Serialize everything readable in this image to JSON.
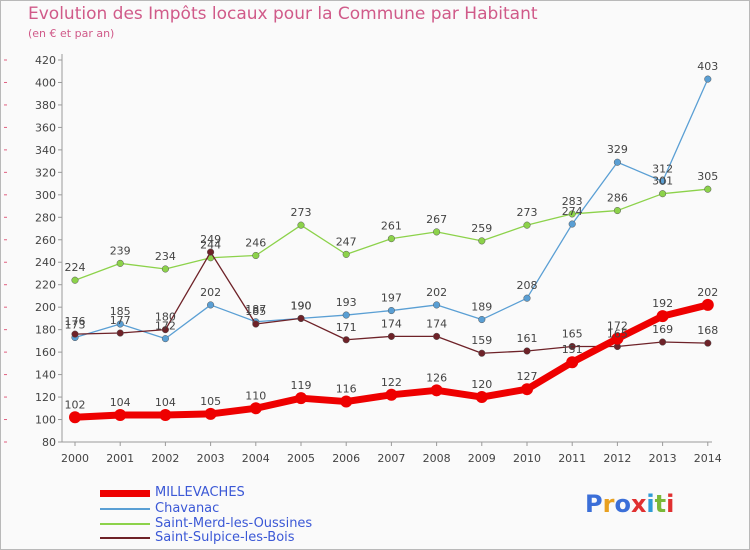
{
  "title": "Evolution des Impôts locaux pour la Commune par Habitant",
  "subtitle": "(en € et par an)",
  "logo": {
    "text": "Proxiti",
    "letter_colors": [
      "#3b6fd8",
      "#e8a020",
      "#3b6fd8",
      "#e03030",
      "#2f9bd6",
      "#7ab838",
      "#e03030"
    ]
  },
  "chart_data": {
    "type": "line",
    "title": "Evolution des Impôts locaux pour la Commune par Habitant",
    "subtitle": "(en € et par an)",
    "x": [
      2000,
      2001,
      2002,
      2003,
      2004,
      2005,
      2006,
      2007,
      2008,
      2009,
      2010,
      2011,
      2012,
      2013,
      2014
    ],
    "ylim": [
      80,
      420
    ],
    "yticks": [
      80,
      100,
      120,
      140,
      160,
      180,
      200,
      220,
      240,
      260,
      280,
      300,
      320,
      340,
      360,
      380,
      400,
      420
    ],
    "grid": false,
    "legend": "bottom-left",
    "series": [
      {
        "name": "MILLEVACHES",
        "color": "#ee0000",
        "values": [
          102,
          104,
          104,
          105,
          110,
          119,
          116,
          122,
          126,
          120,
          127,
          151,
          172,
          192,
          202
        ],
        "labels": [
          "102",
          "104",
          "104",
          "105",
          "110",
          "119",
          "116",
          "122",
          "126",
          "120",
          "127",
          "151",
          "172",
          "192",
          "202"
        ]
      },
      {
        "name": "Chavanac",
        "color": "#5a9fd4",
        "values": [
          173,
          185,
          172,
          202,
          187,
          190,
          193,
          197,
          202,
          189,
          208,
          274,
          329,
          312,
          403
        ],
        "labels": [
          "173",
          "185",
          "172",
          "202",
          "187",
          "190",
          "193",
          "197",
          "202",
          "189",
          "208",
          "274",
          "329",
          "312",
          "403"
        ]
      },
      {
        "name": "Saint-Merd-les-Oussines",
        "color": "#8cd24a",
        "values": [
          224,
          239,
          234,
          244,
          246,
          273,
          247,
          261,
          267,
          259,
          273,
          283,
          286,
          301,
          305
        ],
        "labels": [
          "224",
          "239",
          "234",
          "244",
          "246",
          "273",
          "247",
          "261",
          "267",
          "259",
          "273",
          "283",
          "286",
          "301",
          "305"
        ]
      },
      {
        "name": "Saint-Sulpice-les-Bois",
        "color": "#6e2228",
        "values": [
          176,
          177,
          180,
          249,
          185,
          190,
          171,
          174,
          174,
          159,
          161,
          165,
          165,
          169,
          168
        ],
        "labels": [
          "176",
          "177",
          "180",
          "249",
          "185",
          "190",
          "171",
          "174",
          "174",
          "159",
          "161",
          "165",
          "165",
          "169",
          "168"
        ]
      }
    ]
  }
}
